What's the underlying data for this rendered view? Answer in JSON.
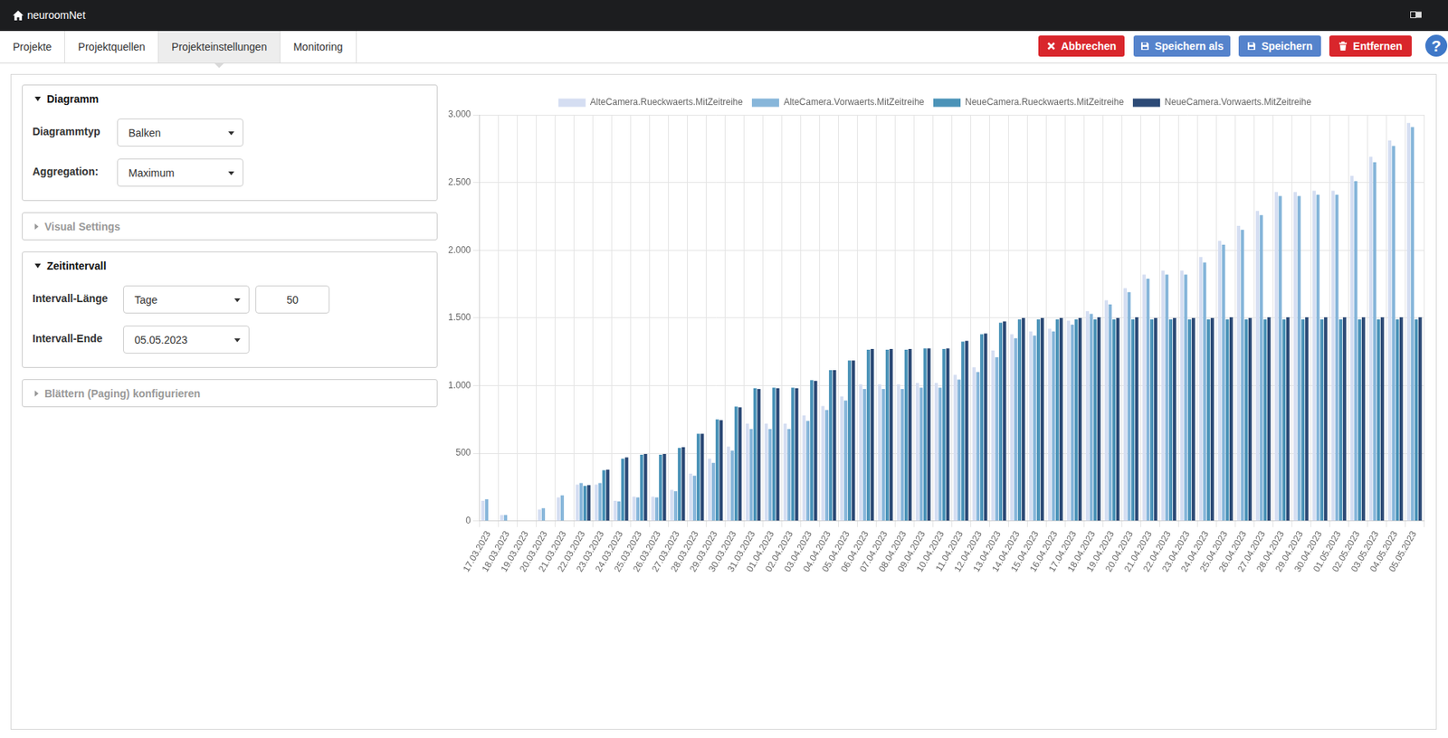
{
  "header": {
    "title": "neuroomNet"
  },
  "tabs": [
    "Projekte",
    "Projektquellen",
    "Projekteinstellungen",
    "Monitoring"
  ],
  "active_tab": "Projekteinstellungen",
  "buttons": [
    {
      "label": "Abbrechen",
      "color": "#d9262c"
    },
    {
      "label": "Speichern als",
      "color": "#5583cc"
    },
    {
      "label": "Speichern",
      "color": "#5583cc"
    },
    {
      "label": "Entfernen",
      "color": "#d9262c"
    }
  ],
  "help": "?",
  "panels": [
    {
      "title": "Diagramm",
      "open": true,
      "fields": [
        {
          "label": "Diagrammtyp",
          "value": "Balken"
        },
        {
          "label": "Aggregation:",
          "value": "Maximum"
        }
      ]
    },
    {
      "title": "Visual Settings",
      "open": false
    },
    {
      "title": "Zeitintervall",
      "open": true,
      "fields": [
        {
          "label": "Intervall-Länge",
          "value": "Tage",
          "number": 50
        },
        {
          "label": "Intervall-Ende",
          "value": "05.05.2023"
        }
      ]
    },
    {
      "title": "Blättern (Paging) konfigurieren",
      "open": false
    }
  ],
  "chart_data": {
    "type": "bar",
    "categories": [
      "17.03.2023",
      "18.03.2023",
      "19.03.2023",
      "20.03.2023",
      "21.03.2023",
      "22.03.2023",
      "23.03.2023",
      "24.03.2023",
      "25.03.2023",
      "26.03.2023",
      "27.03.2023",
      "28.03.2023",
      "29.03.2023",
      "30.03.2023",
      "31.03.2023",
      "01.04.2023",
      "02.04.2023",
      "03.04.2023",
      "04.04.2023",
      "05.04.2023",
      "06.04.2023",
      "07.04.2023",
      "08.04.2023",
      "09.04.2023",
      "10.04.2023",
      "11.04.2023",
      "12.04.2023",
      "13.04.2023",
      "14.04.2023",
      "15.04.2023",
      "16.04.2023",
      "17.04.2023",
      "18.04.2023",
      "19.04.2023",
      "20.04.2023",
      "21.04.2023",
      "22.04.2023",
      "23.04.2023",
      "24.04.2023",
      "25.04.2023",
      "26.04.2023",
      "27.04.2023",
      "28.04.2023",
      "29.04.2023",
      "30.04.2023",
      "01.05.2023",
      "02.05.2023",
      "03.05.2023",
      "04.05.2023",
      "05.05.2023"
    ],
    "series": [
      {
        "name": "AlteCamera.Rueckwaerts.MitZeitreihe",
        "color": "#d5def2",
        "values": [
          150,
          45,
          0,
          85,
          175,
          270,
          270,
          150,
          180,
          180,
          230,
          350,
          460,
          550,
          720,
          720,
          720,
          780,
          850,
          920,
          1010,
          1010,
          1010,
          1020,
          1020,
          1080,
          1135,
          1260,
          1380,
          1400,
          1420,
          1480,
          1550,
          1630,
          1720,
          1820,
          1850,
          1850,
          1950,
          2070,
          2180,
          2290,
          2430,
          2430,
          2440,
          2440,
          2550,
          2690,
          2810,
          2940
        ]
      },
      {
        "name": "AlteCamera.Vorwaerts.MitZeitreihe",
        "color": "#87b6da",
        "values": [
          160,
          45,
          0,
          95,
          190,
          280,
          280,
          145,
          175,
          175,
          220,
          335,
          430,
          520,
          680,
          680,
          680,
          740,
          820,
          890,
          975,
          975,
          975,
          985,
          985,
          1045,
          1100,
          1210,
          1350,
          1370,
          1400,
          1450,
          1530,
          1600,
          1690,
          1790,
          1820,
          1820,
          1910,
          2040,
          2150,
          2260,
          2400,
          2400,
          2410,
          2410,
          2510,
          2650,
          2770,
          2910
        ]
      },
      {
        "name": "NeueCamera.Rueckwaerts.MitZeitreihe",
        "color": "#4b93b8",
        "values": [
          0,
          0,
          0,
          0,
          0,
          260,
          375,
          460,
          490,
          490,
          540,
          645,
          750,
          845,
          980,
          985,
          985,
          1040,
          1115,
          1185,
          1265,
          1265,
          1265,
          1275,
          1270,
          1325,
          1380,
          1465,
          1490,
          1490,
          1490,
          1490,
          1490,
          1490,
          1490,
          1490,
          1490,
          1490,
          1490,
          1490,
          1490,
          1490,
          1490,
          1490,
          1490,
          1490,
          1490,
          1490,
          1490,
          1490
        ]
      },
      {
        "name": "NeueCamera.Vorwaerts.MitZeitreihe",
        "color": "#2c4a76",
        "values": [
          0,
          0,
          0,
          0,
          0,
          265,
          380,
          470,
          495,
          495,
          545,
          645,
          745,
          840,
          975,
          980,
          980,
          1035,
          1115,
          1185,
          1270,
          1270,
          1270,
          1275,
          1275,
          1330,
          1385,
          1475,
          1500,
          1500,
          1500,
          1500,
          1505,
          1500,
          1505,
          1500,
          1500,
          1500,
          1500,
          1505,
          1500,
          1505,
          1505,
          1505,
          1505,
          1505,
          1505,
          1505,
          1505,
          1505
        ]
      }
    ],
    "ylim": [
      0,
      3000
    ],
    "yticks": [
      0,
      500,
      {
        "value": 1000,
        "label": "1.000"
      },
      {
        "value": 1500,
        "label": "1.500"
      },
      {
        "value": 2000,
        "label": "2.000"
      },
      {
        "value": 2500,
        "label": "2.500"
      },
      {
        "value": 3000,
        "label": "3.000"
      }
    ],
    "grid": true,
    "legend": "top"
  }
}
